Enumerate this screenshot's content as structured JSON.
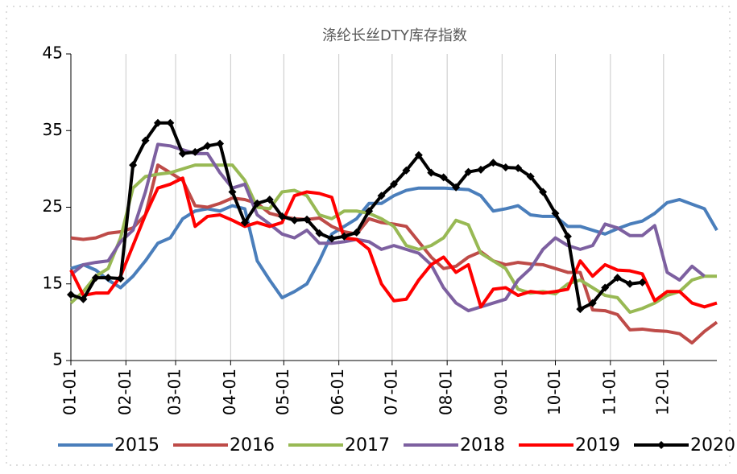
{
  "chart_data": {
    "type": "line",
    "title": "涤纶长丝DTY库存指数",
    "x": [
      0,
      1,
      2,
      3,
      4,
      5,
      6,
      7,
      8,
      9,
      10,
      11,
      12,
      13,
      14,
      15,
      16,
      17,
      18,
      19,
      20,
      21,
      22,
      23,
      24,
      25,
      26,
      27,
      28,
      29,
      30,
      31,
      32,
      33,
      34,
      35,
      36,
      37,
      38,
      39,
      40,
      41,
      42,
      43,
      44,
      45,
      46,
      47,
      48,
      49,
      50,
      51,
      52
    ],
    "xlim": [
      0,
      52
    ],
    "xticks": [
      {
        "value": 0,
        "label": "01-01"
      },
      {
        "value": 4.43,
        "label": "02-01"
      },
      {
        "value": 8.43,
        "label": "03-01"
      },
      {
        "value": 12.86,
        "label": "04-01"
      },
      {
        "value": 17.14,
        "label": "05-01"
      },
      {
        "value": 21.57,
        "label": "06-01"
      },
      {
        "value": 25.86,
        "label": "07-01"
      },
      {
        "value": 30.29,
        "label": "08-01"
      },
      {
        "value": 34.71,
        "label": "09-01"
      },
      {
        "value": 39,
        "label": "10-01"
      },
      {
        "value": 43.43,
        "label": "11-01"
      },
      {
        "value": 47.71,
        "label": "12-01"
      }
    ],
    "ylim": [
      5,
      45
    ],
    "yticks": [
      5,
      15,
      25,
      35,
      45
    ],
    "grid": true,
    "legend": "bottom",
    "series": [
      {
        "name": "2015",
        "color": "#4a7ebb",
        "values": [
          17,
          17.5,
          16.8,
          15.5,
          14.5,
          16,
          18,
          20.3,
          21,
          23.5,
          24.5,
          24.8,
          24.5,
          25.2,
          24.8,
          18,
          15.5,
          13.2,
          14,
          15,
          18,
          21.5,
          22.5,
          23.5,
          25.5,
          25.5,
          26.5,
          27.2,
          27.5,
          27.5,
          27.5,
          27.4,
          27.3,
          26.5,
          24.5,
          24.8,
          25.2,
          24,
          23.8,
          23.8,
          22.5,
          22.5,
          22,
          21.5,
          22.2,
          22.8,
          23.2,
          24.2,
          25.6,
          26,
          25.4,
          24.8,
          22
        ]
      },
      {
        "name": "2016",
        "color": "#be4b48",
        "values": [
          21,
          20.8,
          21,
          21.6,
          21.8,
          22.3,
          24,
          30.5,
          29.5,
          28.5,
          25.2,
          25,
          25.5,
          26.2,
          26,
          25.5,
          24.2,
          23.8,
          23.5,
          23.4,
          23.6,
          22.5,
          21.8,
          21.5,
          23.5,
          23,
          22.8,
          22.5,
          20.5,
          18.5,
          17,
          17.3,
          18.5,
          19.2,
          18,
          17.5,
          17.8,
          17.6,
          17.5,
          17,
          16.5,
          16.5,
          11.6,
          11.5,
          11,
          9,
          9.1,
          8.9,
          8.8,
          8.5,
          7.3,
          8.8,
          10
        ]
      },
      {
        "name": "2017",
        "color": "#98b954",
        "values": [
          12.5,
          14,
          16,
          17,
          21,
          27.5,
          29,
          29.3,
          29.5,
          30,
          30.5,
          30.5,
          30.5,
          30.5,
          28.5,
          25,
          24.8,
          27,
          27.2,
          26.5,
          24,
          23.5,
          24.5,
          24.5,
          24.2,
          23.5,
          22.5,
          20,
          19.5,
          20,
          21,
          23.3,
          22.7,
          19,
          18,
          17,
          14.3,
          13.8,
          14,
          13.7,
          15,
          15.5,
          14.5,
          13.5,
          13.2,
          11.3,
          11.8,
          12.5,
          13.5,
          14,
          15.5,
          16,
          16
        ]
      },
      {
        "name": "2018",
        "color": "#7d60a0",
        "values": [
          16.2,
          17.5,
          17.8,
          18,
          20.5,
          22,
          27,
          33.2,
          33,
          32.5,
          32,
          32,
          29.5,
          27.5,
          28,
          24,
          22.8,
          21.5,
          21,
          22,
          20.3,
          20.3,
          20.5,
          20.8,
          20.5,
          19.5,
          20,
          19.5,
          19,
          17.5,
          14.5,
          12.5,
          11.5,
          12,
          12.5,
          13,
          15.5,
          17,
          19.5,
          21,
          20,
          19.5,
          20,
          22.8,
          22.3,
          21.3,
          21.3,
          22.6,
          16.5,
          15.5,
          17.3,
          16,
          null
        ]
      },
      {
        "name": "2019",
        "color": "#ff0000",
        "values": [
          16.8,
          13.5,
          13.8,
          13.8,
          16,
          20,
          24,
          27.5,
          28,
          28.8,
          22.5,
          23.8,
          24,
          23.3,
          22.5,
          23,
          22.5,
          23,
          26.5,
          27,
          26.8,
          26.3,
          21,
          20.8,
          19.5,
          15,
          12.8,
          13,
          15.5,
          17.5,
          18.5,
          16.5,
          17.5,
          12,
          14.3,
          14.5,
          13.5,
          14,
          13.8,
          14,
          14.3,
          18,
          16,
          17.5,
          16.8,
          16.7,
          16.3,
          12.8,
          14,
          14,
          12.5,
          12,
          12.5
        ]
      },
      {
        "name": "2020",
        "color": "#000000",
        "marker": "diamond",
        "values": [
          13.6,
          13,
          15.8,
          15.8,
          15.7,
          30.5,
          33.7,
          36,
          36,
          32,
          32.2,
          33,
          33.3,
          27,
          23,
          25.5,
          26,
          23.8,
          23.3,
          23.4,
          21.6,
          20.9,
          21.2,
          21.7,
          24.5,
          26.5,
          28,
          29.8,
          31.8,
          29.5,
          28.9,
          27.6,
          29.6,
          29.9,
          30.8,
          30.2,
          30.1,
          29,
          27,
          24.2,
          21.2,
          11.7,
          12.5,
          14.5,
          15.8,
          15,
          15.2,
          null,
          null,
          null,
          null,
          null,
          null
        ]
      }
    ]
  }
}
